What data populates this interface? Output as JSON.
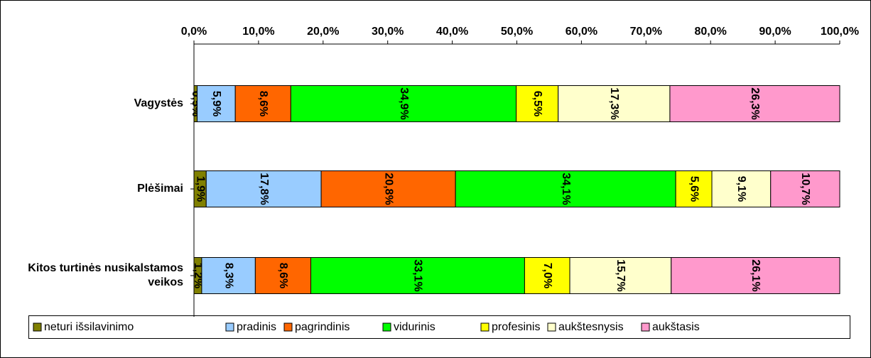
{
  "chart_data": {
    "type": "stacked_barh",
    "categories": [
      "Vagystės",
      "Plėšimai",
      "Kitos turtinės nusikalstamos veikos"
    ],
    "series": [
      {
        "name": "neturi išsilavinimo",
        "color": "#808000",
        "values": [
          0.5,
          1.9,
          1.2
        ],
        "value_labels": [
          "0,5%",
          "1,9%",
          "1,2%"
        ]
      },
      {
        "name": "pradinis",
        "color": "#99ccff",
        "values": [
          5.9,
          17.8,
          8.3
        ],
        "value_labels": [
          "5,9%",
          "17,8%",
          "8,3%"
        ]
      },
      {
        "name": "pagrindinis",
        "color": "#ff6600",
        "values": [
          8.6,
          20.8,
          8.6
        ],
        "value_labels": [
          "8,6%",
          "20,8%",
          "8,6%"
        ]
      },
      {
        "name": "vidurinis",
        "color": "#00ff00",
        "values": [
          34.9,
          34.1,
          33.1
        ],
        "value_labels": [
          "34,9%",
          "34,1%",
          "33,1%"
        ]
      },
      {
        "name": "profesinis",
        "color": "#ffff00",
        "values": [
          6.5,
          5.6,
          7.0
        ],
        "value_labels": [
          "6,5%",
          "5,6%",
          "7,0%"
        ]
      },
      {
        "name": "aukštesnysis",
        "color": "#ffffcc",
        "values": [
          17.3,
          9.1,
          15.7
        ],
        "value_labels": [
          "17,3%",
          "9,1%",
          "15,7%"
        ]
      },
      {
        "name": "aukštasis",
        "color": "#ff99cc",
        "values": [
          26.3,
          10.7,
          26.1
        ],
        "value_labels": [
          "26,3%",
          "10,7%",
          "26,1%"
        ]
      }
    ],
    "xlim": [
      0,
      100
    ],
    "xticks": [
      {
        "value": 0,
        "label": "0,0%"
      },
      {
        "value": 10,
        "label": "10,0%"
      },
      {
        "value": 20,
        "label": "20,0%"
      },
      {
        "value": 30,
        "label": "30,0%"
      },
      {
        "value": 40,
        "label": "40,0%"
      },
      {
        "value": 50,
        "label": "50,0%"
      },
      {
        "value": 60,
        "label": "60,0%"
      },
      {
        "value": 70,
        "label": "70,0%"
      },
      {
        "value": 80,
        "label": "80,0%"
      },
      {
        "value": 90,
        "label": "90,0%"
      },
      {
        "value": 100,
        "label": "100,0%"
      }
    ],
    "legend": "bottom"
  }
}
